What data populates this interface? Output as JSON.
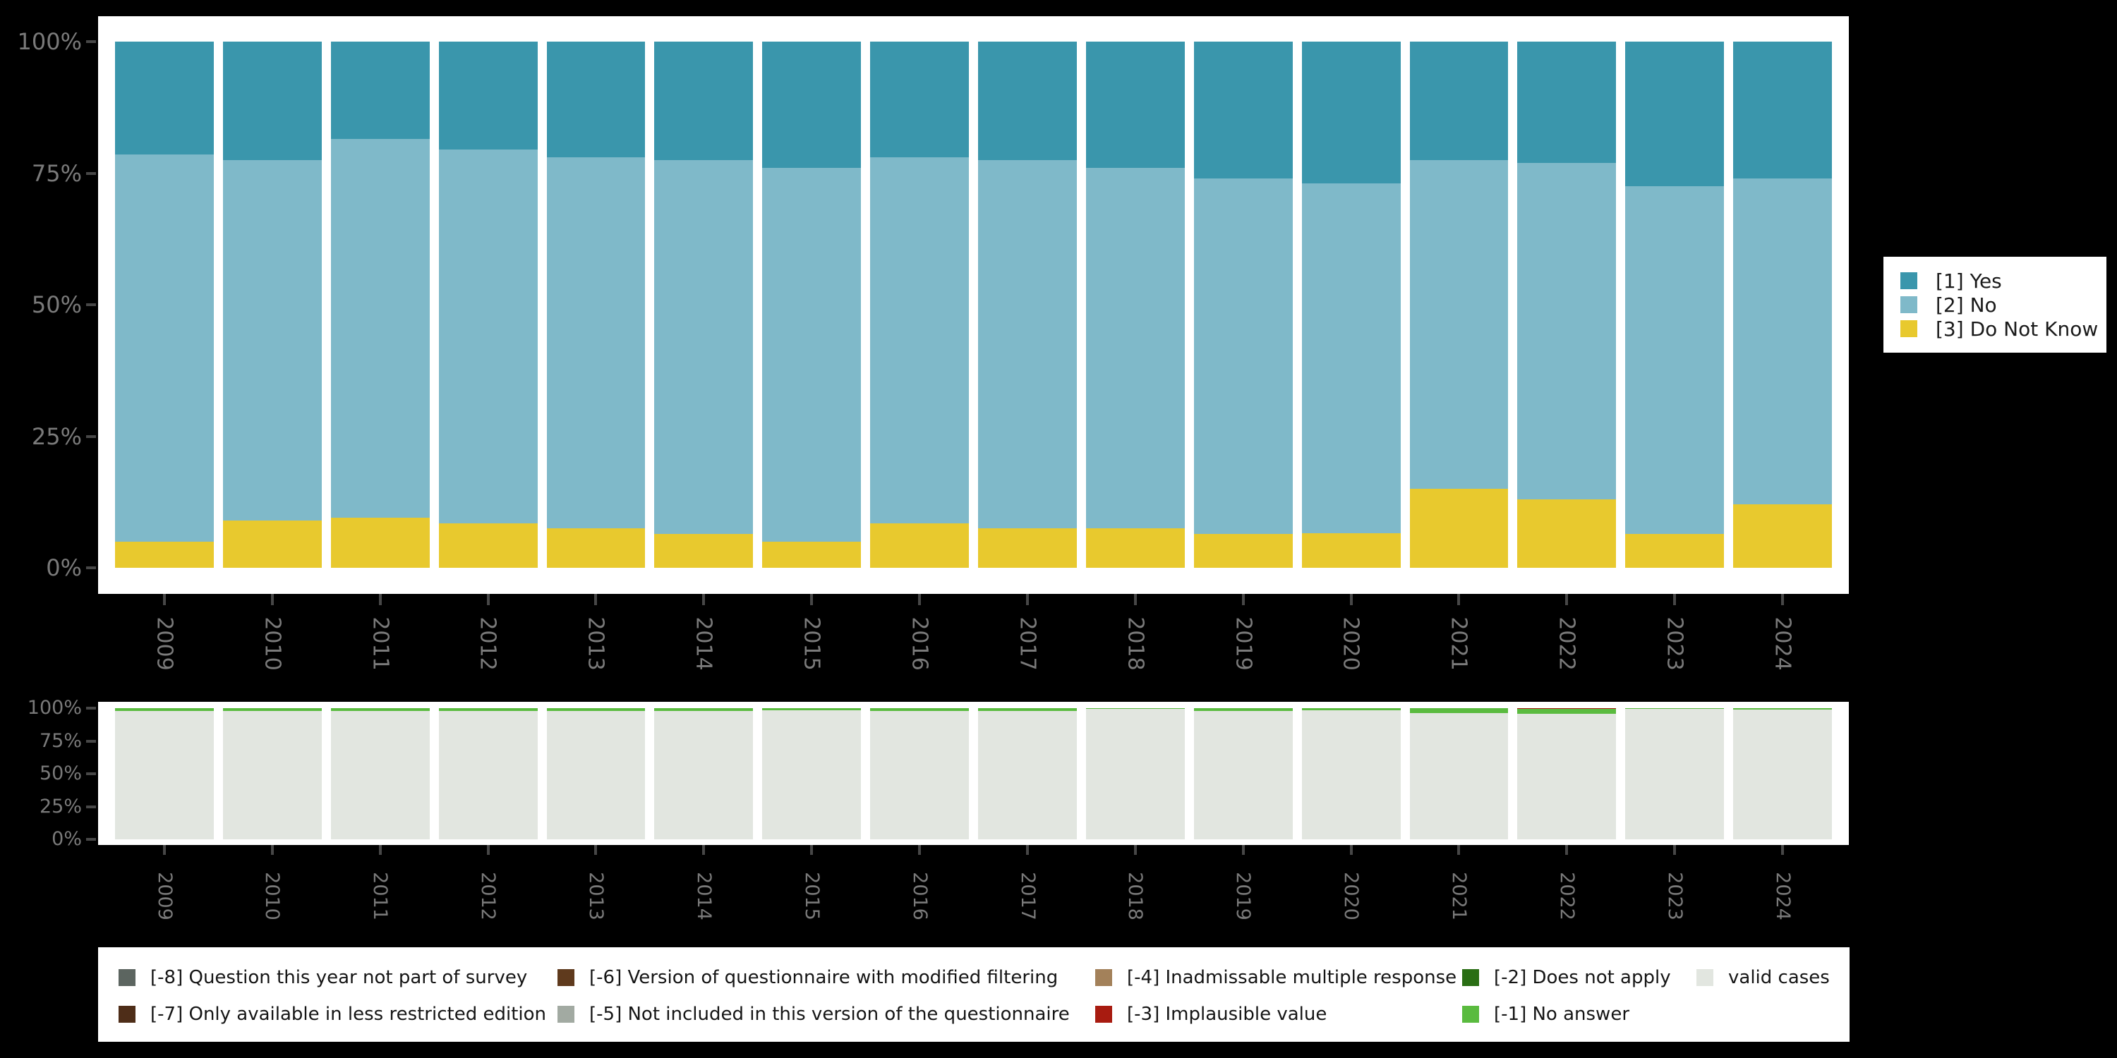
{
  "app_title": "Stacked percentage bar chart with missing-values summary",
  "colors": {
    "background": "#000000",
    "panel": "#ffffff",
    "axis_text": "#7a7a7a",
    "tick": "#474747",
    "legend_text": "#1a1a1a",
    "yes": "#3a96ac",
    "no": "#7fb9c9",
    "do_not_know": "#e8c92e",
    "valid_cases": "#e2e6e0",
    "no_answer": "#5abb3f",
    "does_not_apply": "#2a6e14",
    "implausible_value": "#a81b10",
    "m8": "#5c6560",
    "m7": "#4e2d18",
    "m6": "#5f3a1d",
    "m5": "#a2aaa2",
    "m4": "#a3815a"
  },
  "y_axis": {
    "ticks": [
      "100%",
      "75%",
      "50%",
      "25%",
      "0%"
    ]
  },
  "categories": [
    "2009",
    "2010",
    "2011",
    "2012",
    "2013",
    "2014",
    "2015",
    "2016",
    "2017",
    "2018",
    "2019",
    "2020",
    "2021",
    "2022",
    "2023",
    "2024"
  ],
  "chart_data": [
    {
      "type": "bar",
      "stacked": true,
      "title": "",
      "xlabel": "",
      "ylabel": "",
      "ylim": [
        0,
        100
      ],
      "y_tick_labels": [
        "0%",
        "25%",
        "50%",
        "75%",
        "100%"
      ],
      "categories": [
        "2009",
        "2010",
        "2011",
        "2012",
        "2013",
        "2014",
        "2015",
        "2016",
        "2017",
        "2018",
        "2019",
        "2020",
        "2021",
        "2022",
        "2023",
        "2024"
      ],
      "series": [
        {
          "name": "[1] Yes",
          "color_key": "yes",
          "values": [
            21.5,
            22.5,
            18.5,
            20.5,
            22,
            22.5,
            24,
            22,
            22.5,
            24,
            26,
            27,
            22.5,
            23,
            27.5,
            26
          ]
        },
        {
          "name": "[2] No",
          "color_key": "no",
          "values": [
            73.5,
            68.5,
            72,
            71,
            70.5,
            71,
            71,
            69.5,
            70,
            68.5,
            67.5,
            66.5,
            62.5,
            64,
            66,
            62
          ]
        },
        {
          "name": "[3] Do Not Know",
          "color_key": "do_not_know",
          "values": [
            5,
            9,
            9.5,
            8.5,
            7.5,
            6.5,
            5,
            8.5,
            7.5,
            7.5,
            6.5,
            6.5,
            15,
            13,
            6.5,
            12
          ]
        }
      ],
      "legend_position": "right"
    },
    {
      "type": "bar",
      "stacked": true,
      "title": "",
      "xlabel": "",
      "ylabel": "",
      "ylim": [
        0,
        100
      ],
      "y_tick_labels": [
        "0%",
        "25%",
        "50%",
        "75%",
        "100%"
      ],
      "categories": [
        "2009",
        "2010",
        "2011",
        "2012",
        "2013",
        "2014",
        "2015",
        "2016",
        "2017",
        "2018",
        "2019",
        "2020",
        "2021",
        "2022",
        "2023",
        "2024"
      ],
      "series": [
        {
          "name": "[-3] Implausible value",
          "color_key": "implausible_value",
          "values": [
            0,
            0,
            0,
            0,
            0,
            0,
            0,
            0,
            0,
            0,
            0,
            0,
            0,
            0.5,
            0,
            0
          ]
        },
        {
          "name": "[-1] No answer",
          "color_key": "no_answer",
          "values": [
            2,
            2,
            2,
            2,
            2,
            2,
            1.5,
            2,
            2,
            0.5,
            2,
            1.5,
            4,
            4,
            0.7,
            1
          ]
        },
        {
          "name": "valid cases",
          "color_key": "valid_cases",
          "values": [
            98,
            98,
            98,
            98,
            98,
            98,
            98.5,
            98,
            98,
            99.5,
            98,
            98.5,
            96,
            95.5,
            99.3,
            99
          ]
        }
      ],
      "legend_position": "bottom"
    }
  ],
  "legend_main": {
    "items": [
      {
        "label": "[1] Yes",
        "color_key": "yes"
      },
      {
        "label": "[2] No",
        "color_key": "no"
      },
      {
        "label": "[3] Do Not Know",
        "color_key": "do_not_know"
      }
    ]
  },
  "legend_missing": {
    "items": [
      {
        "label": "[-8] Question this year not part of survey",
        "color_key": "m8"
      },
      {
        "label": "[-7] Only available in less restricted edition",
        "color_key": "m7"
      },
      {
        "label": "[-6] Version of questionnaire with modified filtering",
        "color_key": "m6"
      },
      {
        "label": "[-5] Not included in this version of the questionnaire",
        "color_key": "m5"
      },
      {
        "label": "[-4] Inadmissable multiple response",
        "color_key": "m4"
      },
      {
        "label": "[-3] Implausible value",
        "color_key": "implausible_value"
      },
      {
        "label": "[-2] Does not apply",
        "color_key": "does_not_apply"
      },
      {
        "label": "[-1] No answer",
        "color_key": "no_answer"
      },
      {
        "label": "valid cases",
        "color_key": "valid_cases"
      }
    ]
  }
}
